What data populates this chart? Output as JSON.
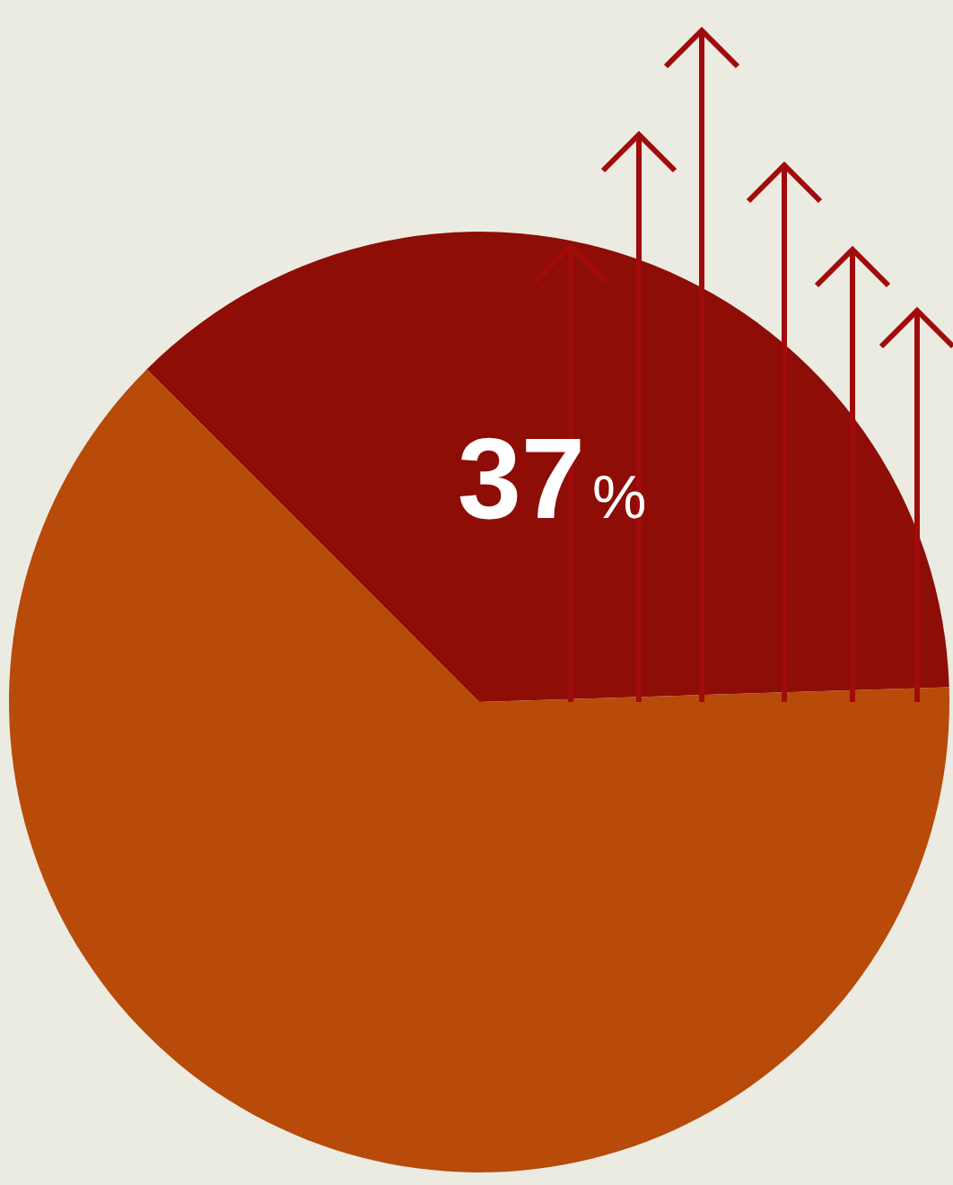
{
  "chart_data": {
    "type": "pie",
    "categories": [
      null,
      null
    ],
    "values": [
      37,
      63
    ],
    "colors": [
      "#8e0d06",
      "#b84a0a"
    ],
    "value_labels": [
      "37%",
      null
    ]
  }
}
